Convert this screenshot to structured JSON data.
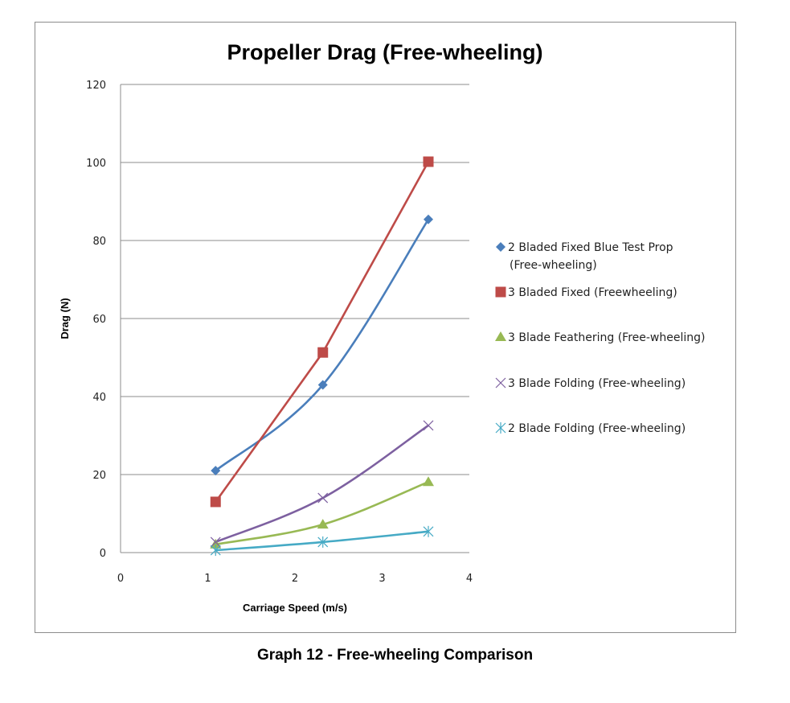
{
  "caption": "Graph 12 - Free-wheeling Comparison",
  "chart_data": {
    "type": "line",
    "title": "Propeller Drag (Free-wheeling)",
    "xlabel": "Carriage Speed (m/s)",
    "ylabel": "Drag (N)",
    "xlim": [
      0,
      4
    ],
    "ylim": [
      0,
      120
    ],
    "xticks": [
      "0",
      "1",
      "2",
      "3",
      "4"
    ],
    "yticks": [
      "0",
      "20",
      "40",
      "60",
      "80",
      "100",
      "120"
    ],
    "xtick_values": [
      0,
      1,
      2,
      3,
      4
    ],
    "ytick_values": [
      0,
      20,
      40,
      60,
      80,
      100,
      120
    ],
    "grid": "horizontal",
    "legend_position": "right",
    "series": [
      {
        "name": "2 Bladed Fixed Blue Test Prop (Free-wheeling)",
        "legend_lines": [
          "2 Bladed Fixed Blue Test Prop",
          "(Free-wheeling)"
        ],
        "color": "#4a7ebb",
        "marker": "diamond",
        "smooth": true,
        "x": [
          1.09,
          2.32,
          3.53
        ],
        "y": [
          21.0,
          43.0,
          85.4
        ]
      },
      {
        "name": "3 Bladed Fixed (Freewheeling)",
        "legend_lines": [
          "3 Bladed Fixed (Freewheeling)"
        ],
        "color": "#be4b48",
        "marker": "square",
        "smooth": false,
        "x": [
          1.09,
          2.32,
          3.53
        ],
        "y": [
          13.0,
          51.3,
          100.2
        ]
      },
      {
        "name": "3 Blade Feathering (Free-wheeling)",
        "legend_lines": [
          "3 Blade Feathering (Free-wheeling)"
        ],
        "color": "#98b954",
        "marker": "triangle",
        "smooth": true,
        "x": [
          1.09,
          2.32,
          3.53
        ],
        "y": [
          2.1,
          7.2,
          18.1
        ]
      },
      {
        "name": "3 Blade Folding (Free-wheeling)",
        "legend_lines": [
          "3 Blade Folding (Free-wheeling)"
        ],
        "color": "#7d60a0",
        "marker": "x",
        "smooth": true,
        "x": [
          1.09,
          2.32,
          3.53
        ],
        "y": [
          2.7,
          14.0,
          32.6
        ]
      },
      {
        "name": "2 Blade Folding (Free-wheeling)",
        "legend_lines": [
          "2 Blade Folding (Free-wheeling)"
        ],
        "color": "#46aac5",
        "marker": "star",
        "smooth": true,
        "x": [
          1.09,
          2.32,
          3.53
        ],
        "y": [
          0.6,
          2.7,
          5.4
        ]
      }
    ]
  }
}
